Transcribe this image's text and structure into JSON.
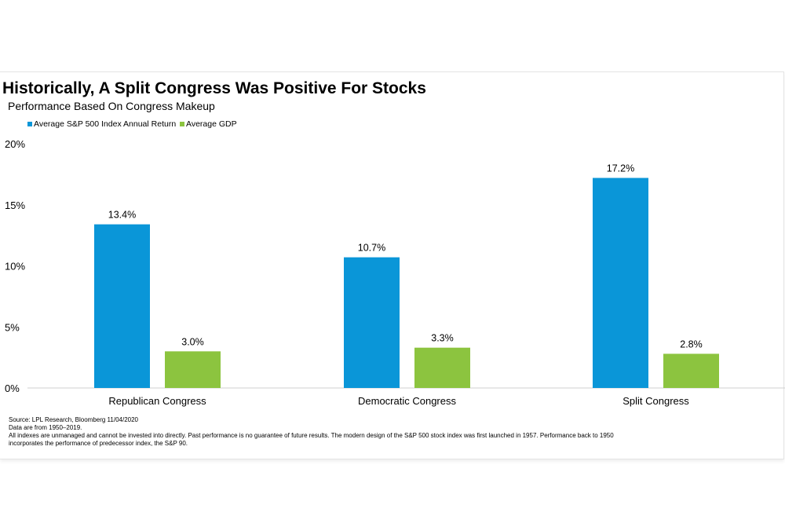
{
  "chart_data": {
    "type": "bar",
    "title": "Historically, A Split Congress Was Positive For Stocks",
    "subtitle": "Performance Based On Congress Makeup",
    "categories": [
      "Republican Congress",
      "Democratic Congress",
      "Split Congress"
    ],
    "series": [
      {
        "name": "Average S&P 500 Index Annual Return",
        "color": "#0a96d8",
        "values": [
          13.4,
          10.7,
          17.2
        ],
        "labels": [
          "13.4%",
          "10.7%",
          "17.2%"
        ]
      },
      {
        "name": "Average GDP",
        "color": "#8cc43f",
        "values": [
          3.0,
          3.3,
          2.8
        ],
        "labels": [
          "3.0%",
          "3.3%",
          "2.8%"
        ]
      }
    ],
    "ylim": [
      0,
      20
    ],
    "yticks": [
      0,
      5,
      10,
      15,
      20
    ],
    "ytick_labels": [
      "0%",
      "5%",
      "10%",
      "15%",
      "20%"
    ],
    "xlabel": "",
    "ylabel": "",
    "grid": false,
    "legend": "top-left"
  },
  "footer": {
    "source": "Source: LPL Research, Bloomberg   11/04/2020",
    "data_range": "Data are from 1950–2019.",
    "disclaimer_1": "All indexes are unmanaged and cannot be invested into directly. Past performance is no guarantee of future results. The modern design of the S&P 500 stock index was first launched in 1957. Performance back to 1950",
    "disclaimer_2": "incorporates the performance of predecessor index, the S&P 90."
  }
}
